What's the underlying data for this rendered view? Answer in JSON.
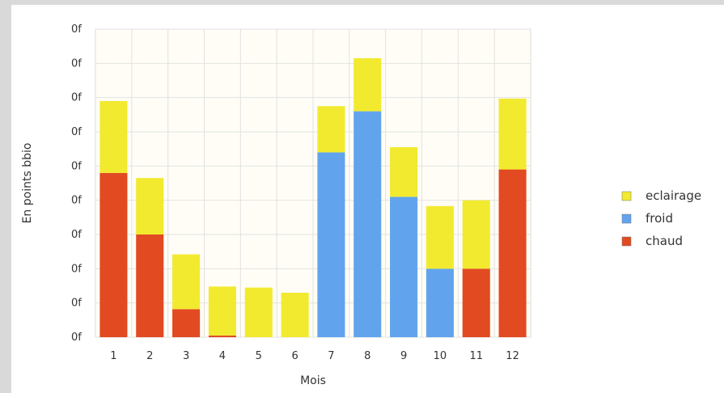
{
  "chart_data": {
    "type": "bar",
    "stacked": true,
    "categories": [
      "1",
      "2",
      "3",
      "4",
      "5",
      "6",
      "7",
      "8",
      "9",
      "10",
      "11",
      "12"
    ],
    "xlabel": "Mois",
    "ylabel": "En points bbio",
    "y_tick_labels": [
      "0f",
      "0f",
      "0f",
      "0f",
      "0f",
      "0f",
      "0f",
      "0f",
      "0f",
      "0f"
    ],
    "ylim": [
      0,
      9
    ],
    "grid": true,
    "legend_position": "right",
    "series": [
      {
        "name": "chaud",
        "color": "#e24a22",
        "values": [
          4.8,
          3.0,
          0.82,
          0.05,
          0,
          0,
          0,
          0,
          0,
          0,
          2.0,
          4.9
        ]
      },
      {
        "name": "froid",
        "color": "#61a4ed",
        "values": [
          0,
          0,
          0,
          0,
          0,
          0,
          5.4,
          6.6,
          4.1,
          2.0,
          0,
          0
        ]
      },
      {
        "name": "eclairage",
        "color": "#f2ea2f",
        "values": [
          2.1,
          1.65,
          1.6,
          1.43,
          1.45,
          1.3,
          1.35,
          1.55,
          1.45,
          1.83,
          2.0,
          2.07
        ]
      }
    ],
    "legend_order": [
      "eclairage",
      "froid",
      "chaud"
    ]
  }
}
